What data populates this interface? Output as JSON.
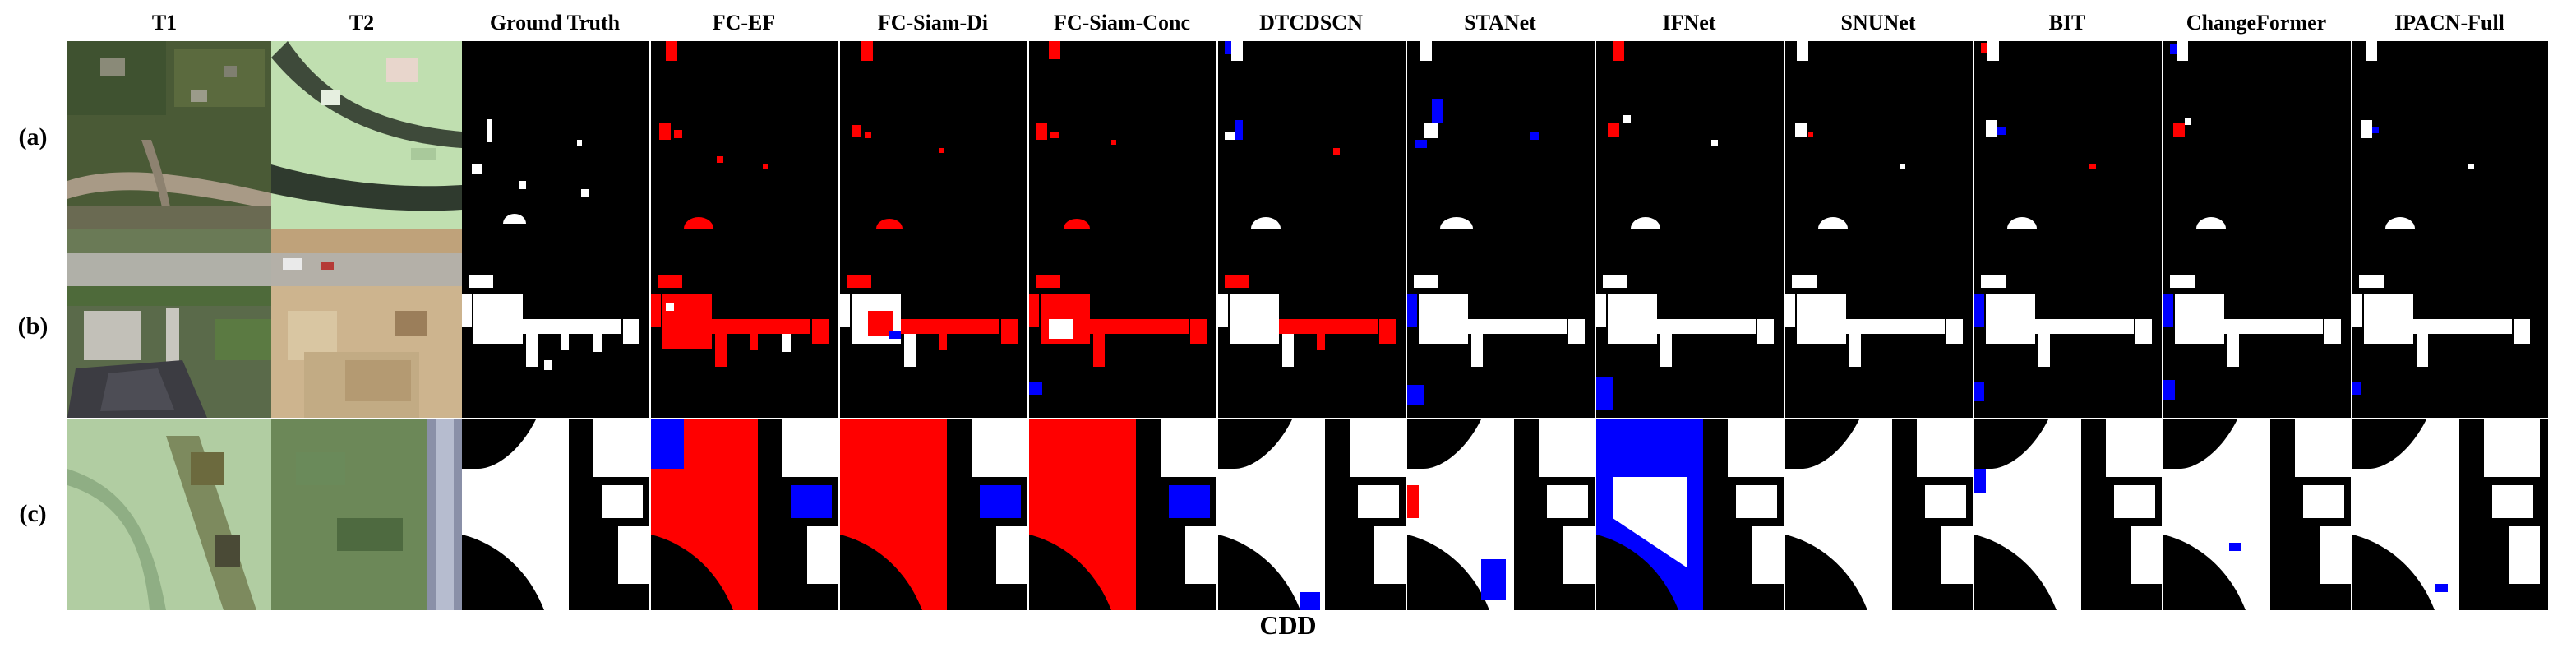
{
  "figure": {
    "columns": [
      {
        "label": "T1"
      },
      {
        "label": "T2"
      },
      {
        "label": "Ground Truth"
      },
      {
        "label": "FC-EF"
      },
      {
        "label": "FC-Siam-Di"
      },
      {
        "label": "FC-Siam-Conc"
      },
      {
        "label": "DTCDSCN"
      },
      {
        "label": "STANet"
      },
      {
        "label": "IFNet"
      },
      {
        "label": "SNUNet"
      },
      {
        "label": "BIT"
      },
      {
        "label": "ChangeFormer"
      },
      {
        "label": "IPACN-Full"
      }
    ],
    "rows": [
      {
        "label": "(a)"
      },
      {
        "label": "(b)"
      },
      {
        "label": "(c)"
      }
    ],
    "caption": "CDD",
    "colors": {
      "background": "#ffffff",
      "mask_background": "#000000",
      "true_positive": "#ffffff",
      "false_positive": "#ff0000",
      "false_negative": "#0000ff"
    }
  }
}
